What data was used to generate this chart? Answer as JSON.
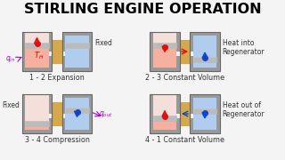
{
  "title": "STIRLING ENGINE OPERATION",
  "title_fontsize": 11.5,
  "background_color": "#f4f4f4",
  "hot_color": "#f5b0a0",
  "cold_color": "#b0ccee",
  "wall_color": "#999999",
  "wall_dark": "#666666",
  "regen_color": "#d4a84b",
  "regen_edge": "#9a7010",
  "border_color": "#555555",
  "label_color": "#333333",
  "red_col": "#dd1111",
  "blue_col": "#1144cc",
  "purple_col": "#aa00cc",
  "labels": [
    "1 - 2 Expansion",
    "2 - 3 Constant Volume",
    "3 - 4 Compression",
    "4 - 1 Constant Volume"
  ],
  "side_labels_fixed": [
    "Fixed",
    "Fixed"
  ],
  "side_label_heat_in": "Heat into\nRegenerator",
  "side_label_heat_out": "Heat out of\nRegenerator",
  "font_size_label": 5.8,
  "font_size_side": 5.5,
  "font_size_q": 5.5,
  "font_size_TH": 6.0
}
